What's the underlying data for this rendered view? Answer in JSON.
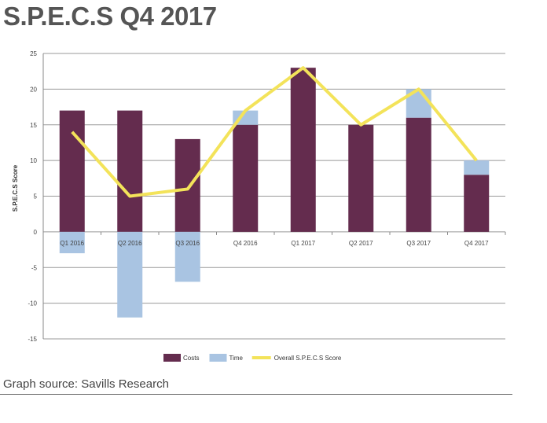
{
  "title": "S.P.E.C.S Q4 2017",
  "source": "Graph source: Savills Research",
  "chart_data": {
    "type": "bar",
    "categories": [
      "Q1 2016",
      "Q2 2016",
      "Q3 2016",
      "Q4 2016",
      "Q1 2017",
      "Q2 2017",
      "Q3 2017",
      "Q4 2017"
    ],
    "series": [
      {
        "name": "Costs",
        "type": "bar",
        "stacked": true,
        "color": "#642c4e",
        "values": [
          17,
          17,
          13,
          15,
          23,
          15,
          16,
          8
        ]
      },
      {
        "name": "Time",
        "type": "bar",
        "stacked": true,
        "color": "#a9c4e2",
        "values": [
          -3,
          -12,
          -7,
          2,
          0,
          0,
          4,
          2
        ]
      },
      {
        "name": "Overall S.P.E.C.S Score",
        "type": "line",
        "color": "#f3e35a",
        "values": [
          14,
          5,
          6,
          17,
          23,
          15,
          20,
          10
        ]
      }
    ],
    "ylabel": "S.P.E.C.S Score",
    "xlabel": "",
    "ylim": [
      -15,
      25
    ],
    "yticks": [
      25,
      20,
      15,
      10,
      5,
      0,
      -5,
      -10,
      -15
    ],
    "grid": true,
    "legend": "bottom"
  }
}
